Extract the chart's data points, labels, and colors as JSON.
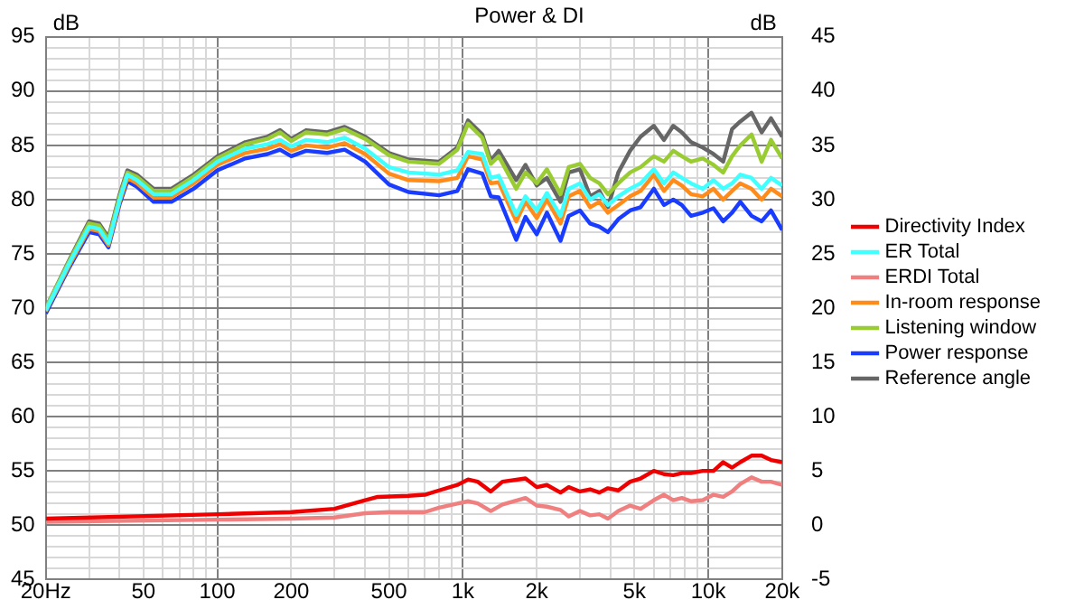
{
  "chart_data": {
    "type": "line",
    "title": "Power & DI",
    "ylabel": "dB",
    "y2label": "dB",
    "log": "x",
    "grid": true,
    "legend": "right",
    "marker": "none",
    "line_style": "solid",
    "x": [
      20,
      25,
      30,
      33,
      36,
      40,
      43,
      47,
      55,
      65,
      80,
      100,
      130,
      160,
      180,
      200,
      230,
      280,
      330,
      400,
      500,
      600,
      800,
      950,
      1050,
      1200,
      1300,
      1400,
      1650,
      1800,
      2000,
      2200,
      2500,
      2700,
      3000,
      3300,
      3600,
      3900,
      4300,
      4800,
      5300,
      6000,
      6600,
      7200,
      7800,
      8500,
      9500,
      10500,
      11500,
      12500,
      13500,
      15000,
      16500,
      18000,
      20000
    ],
    "xlim": [
      20,
      20000
    ],
    "xticks": [
      {
        "value": 20,
        "label": "20Hz"
      },
      {
        "value": 30,
        "label": null
      },
      {
        "value": 40,
        "label": null
      },
      50,
      {
        "value": 60,
        "label": null
      },
      {
        "value": 70,
        "label": null
      },
      {
        "value": 80,
        "label": null
      },
      {
        "value": 90,
        "label": null
      },
      100,
      {
        "value": 300,
        "label": null
      },
      {
        "value": 400,
        "label": null
      },
      200,
      500,
      {
        "value": 600,
        "label": null
      },
      {
        "value": 700,
        "label": null
      },
      {
        "value": 800,
        "label": null
      },
      {
        "value": 900,
        "label": null
      },
      {
        "value": 1000,
        "label": "1k"
      },
      {
        "value": 2000,
        "label": "2k"
      },
      {
        "value": 3000,
        "label": null
      },
      {
        "value": 4000,
        "label": null
      },
      {
        "value": 5000,
        "label": "5k"
      },
      {
        "value": 6000,
        "label": null
      },
      {
        "value": 7000,
        "label": null
      },
      {
        "value": 8000,
        "label": null
      },
      {
        "value": 9000,
        "label": null
      },
      {
        "value": 10000,
        "label": "10k"
      },
      {
        "value": 20000,
        "label": "20k"
      }
    ],
    "ylim": [
      45,
      95
    ],
    "yticks": [
      45,
      {
        "value": 46,
        "label": null
      },
      {
        "value": 47,
        "label": null
      },
      {
        "value": 48,
        "label": null
      },
      {
        "value": 49,
        "label": null
      },
      50,
      {
        "value": 51,
        "label": null
      },
      {
        "value": 52,
        "label": null
      },
      {
        "value": 53,
        "label": null
      },
      {
        "value": 54,
        "label": null
      },
      55,
      {
        "value": 56,
        "label": null
      },
      {
        "value": 57,
        "label": null
      },
      {
        "value": 58,
        "label": null
      },
      {
        "value": 59,
        "label": null
      },
      60,
      {
        "value": 61,
        "label": null
      },
      {
        "value": 62,
        "label": null
      },
      {
        "value": 63,
        "label": null
      },
      {
        "value": 64,
        "label": null
      },
      65,
      {
        "value": 66,
        "label": null
      },
      {
        "value": 67,
        "label": null
      },
      {
        "value": 68,
        "label": null
      },
      {
        "value": 69,
        "label": null
      },
      70,
      {
        "value": 71,
        "label": null
      },
      {
        "value": 72,
        "label": null
      },
      {
        "value": 73,
        "label": null
      },
      {
        "value": 74,
        "label": null
      },
      75,
      {
        "value": 76,
        "label": null
      },
      {
        "value": 77,
        "label": null
      },
      {
        "value": 78,
        "label": null
      },
      {
        "value": 79,
        "label": null
      },
      80,
      {
        "value": 81,
        "label": null
      },
      {
        "value": 82,
        "label": null
      },
      {
        "value": 83,
        "label": null
      },
      {
        "value": 84,
        "label": null
      },
      85,
      {
        "value": 86,
        "label": null
      },
      {
        "value": 87,
        "label": null
      },
      {
        "value": 88,
        "label": null
      },
      {
        "value": 89,
        "label": null
      },
      90,
      {
        "value": 91,
        "label": null
      },
      {
        "value": 92,
        "label": null
      },
      {
        "value": 93,
        "label": null
      },
      {
        "value": 94,
        "label": null
      },
      95
    ],
    "y2lim": [
      -5,
      45
    ],
    "y2ticks": [
      -5,
      0,
      5,
      10,
      15,
      20,
      25,
      30,
      35,
      40,
      45
    ],
    "series": [
      {
        "name": "Directivity Index",
        "color": "#ee0000",
        "axis": "y2",
        "x": [
          20,
          100,
          200,
          300,
          400,
          450,
          600,
          700,
          800,
          950,
          1050,
          1150,
          1300,
          1450,
          1800,
          2000,
          2200,
          2500,
          2700,
          3000,
          3300,
          3600,
          3900,
          4300,
          4800,
          5300,
          6000,
          6600,
          7200,
          7800,
          8500,
          9500,
          10500,
          11500,
          12500,
          13500,
          15000,
          16500,
          18000,
          20000
        ],
        "values": [
          0.6,
          1.0,
          1.2,
          1.5,
          2.3,
          2.6,
          2.7,
          2.8,
          3.2,
          3.7,
          4.2,
          4.0,
          3.1,
          4.0,
          4.3,
          3.5,
          3.7,
          3.0,
          3.5,
          3.1,
          3.3,
          3.0,
          3.4,
          3.2,
          4.0,
          4.3,
          5.0,
          4.7,
          4.6,
          4.8,
          4.8,
          5.0,
          5.0,
          5.8,
          5.3,
          5.8,
          6.4,
          6.4,
          6.0,
          5.8
        ]
      },
      {
        "name": "ER Total",
        "color": "#40ffff",
        "values": [
          69.8,
          74.2,
          77.5,
          77.3,
          76,
          80,
          82.3,
          81.8,
          80.5,
          80.5,
          81.8,
          83.5,
          84.7,
          85.1,
          85.5,
          84.9,
          85.5,
          85.3,
          85.7,
          84.7,
          83,
          82.5,
          82.3,
          82.7,
          84.4,
          84.2,
          82,
          82.2,
          78.6,
          80.3,
          79,
          80.6,
          78.5,
          81,
          81.5,
          80,
          80.5,
          79.5,
          80.3,
          81,
          81.5,
          82.8,
          81.5,
          82.5,
          82,
          81.5,
          81,
          81.8,
          81,
          81.5,
          82.3,
          82,
          81,
          82,
          81.3
        ]
      },
      {
        "name": "ERDI Total",
        "color": "#f08080",
        "axis": "y2",
        "x": [
          20,
          100,
          200,
          300,
          400,
          500,
          700,
          800,
          1050,
          1150,
          1300,
          1450,
          1800,
          2000,
          2200,
          2500,
          2700,
          3000,
          3300,
          3600,
          3900,
          4300,
          4800,
          5300,
          6000,
          6600,
          7200,
          7800,
          8500,
          9500,
          10500,
          11500,
          12500,
          13500,
          15000,
          16500,
          18000,
          20000
        ],
        "values": [
          0.3,
          0.5,
          0.6,
          0.7,
          1.1,
          1.2,
          1.2,
          1.6,
          2.2,
          2.0,
          1.3,
          1.9,
          2.5,
          1.8,
          1.7,
          1.4,
          0.8,
          1.3,
          0.9,
          1.0,
          0.6,
          1.3,
          1.8,
          1.5,
          2.3,
          2.8,
          2.3,
          2.5,
          2.2,
          2.3,
          2.8,
          2.6,
          3.1,
          3.8,
          4.4,
          4.0,
          4.0,
          3.7
        ]
      },
      {
        "name": "In-room response",
        "color": "#ff8c1a",
        "values": [
          69.7,
          74,
          77.3,
          77.1,
          75.8,
          79.8,
          82,
          81.5,
          80.2,
          80.2,
          81.5,
          83.2,
          84.3,
          84.7,
          85.1,
          84.5,
          85,
          84.8,
          85.2,
          84.2,
          82.4,
          81.8,
          81.7,
          82,
          84,
          83.7,
          81.5,
          81.6,
          78,
          79.8,
          78.3,
          80,
          77.8,
          80.3,
          80.8,
          79.3,
          79.8,
          78.8,
          79.5,
          80.3,
          80.8,
          82.3,
          80.8,
          81.8,
          81.3,
          80.5,
          80.3,
          81,
          80,
          80.8,
          81.5,
          81,
          80,
          81,
          80.3
        ]
      },
      {
        "name": "Listening window",
        "color": "#99cc33",
        "values": [
          70,
          74.4,
          77.8,
          77.6,
          76.3,
          80.3,
          82.5,
          82.1,
          80.8,
          80.8,
          82.1,
          83.8,
          85.1,
          85.6,
          86.2,
          85.4,
          86.2,
          86,
          86.5,
          85.6,
          84.1,
          83.5,
          83.3,
          84.6,
          87,
          85.7,
          83.3,
          84,
          81,
          82.5,
          81.5,
          82.8,
          80.5,
          83,
          83.3,
          82,
          81.5,
          80.5,
          81.5,
          82.5,
          83,
          84,
          83.5,
          84.5,
          84,
          83.5,
          83.8,
          83.2,
          82.5,
          84,
          85,
          86,
          83.5,
          85.5,
          83.8
        ]
      },
      {
        "name": "Power response",
        "color": "#1a3cff",
        "values": [
          69.5,
          73.8,
          77,
          76.8,
          75.6,
          79.6,
          81.7,
          81.2,
          79.8,
          79.8,
          81,
          82.7,
          83.8,
          84.2,
          84.6,
          84,
          84.5,
          84.3,
          84.6,
          83.5,
          81.4,
          80.7,
          80.4,
          80.8,
          82.8,
          82.4,
          80.3,
          80.2,
          76.3,
          78.4,
          76.8,
          78.8,
          76.2,
          78.5,
          79,
          77.8,
          77.5,
          77,
          78.2,
          79,
          79.3,
          81,
          79.5,
          80,
          79.5,
          78.5,
          78.8,
          79.2,
          78,
          78.8,
          79.8,
          78.5,
          78,
          79,
          77.2
        ]
      },
      {
        "name": "Reference angle",
        "color": "#666666",
        "values": [
          70,
          74.5,
          78,
          77.8,
          76.5,
          80.5,
          82.7,
          82.3,
          81,
          81,
          82.3,
          84,
          85.3,
          85.8,
          86.4,
          85.6,
          86.4,
          86.2,
          86.7,
          85.8,
          84.3,
          83.7,
          83.5,
          84.8,
          87.3,
          86,
          83.6,
          84.5,
          81.8,
          83.2,
          81.3,
          82,
          79.8,
          82.5,
          82.8,
          80.3,
          80.8,
          79.3,
          82.5,
          84.5,
          85.8,
          86.8,
          85.5,
          86.8,
          86.2,
          85.3,
          84.8,
          84.2,
          83.5,
          86.5,
          87.2,
          88,
          86.2,
          87.5,
          85.8
        ]
      }
    ]
  }
}
